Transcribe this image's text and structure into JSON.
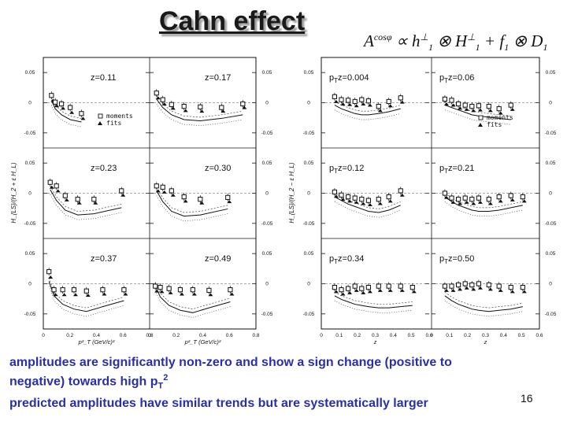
{
  "slide": {
    "title": "Cahn effect",
    "formula": {
      "lhs": "A",
      "lhs_sup": "cosφ",
      "propto": " ∝ ",
      "h": "h",
      "h_sup": "⊥",
      "h_sub": "1",
      "otimes1": " ⊗ ",
      "H": "H",
      "H_sup": "⊥",
      "H_sub": "1",
      "plus": " + ",
      "f": "f",
      "f_sub": "1",
      "otimes2": " ⊗ ",
      "D": "D",
      "D_sub": "1"
    },
    "conclusion_line1": "amplitudes are significantly non-zero and show a sign change (positive to",
    "conclusion_line2_pre": "negative) towards high p",
    "conclusion_line2_sub": "T",
    "conclusion_line2_sup": "2",
    "conclusion_line3": "predicted amplitudes have similar trends but are systematically larger",
    "page_number": "16"
  },
  "colors": {
    "conclusion_text": "#2a2fa8",
    "plot_ink": "#111111"
  },
  "chart_data": [
    {
      "type": "scatter",
      "name": "left figure: amplitude vs pT^2 in bins of z",
      "ylabel": "H_{LS}/(H_2 + ε H_L)",
      "xlabel": "p²_T (GeV/c)²",
      "xlim": [
        0,
        0.8
      ],
      "ylim": [
        -0.075,
        0.075
      ],
      "y_ticks": [
        "0.05",
        "0",
        "-0.05"
      ],
      "x_ticks": [
        "0",
        "0.2",
        "0.4",
        "0.6",
        "0.8"
      ],
      "legend": [
        "moments",
        "fits"
      ],
      "legend_placement": "first panel, bottom-right",
      "panels": [
        {
          "label": "z=0.11",
          "x": [
            0.04,
            0.07,
            0.12,
            0.19,
            0.28
          ],
          "moments": [
            0.012,
            0.001,
            -0.002,
            -0.008,
            -0.018
          ],
          "fits": [
            0.008,
            -0.001,
            -0.005,
            -0.012,
            -0.022
          ],
          "model": [
            0.004,
            -0.01,
            -0.02,
            -0.028,
            -0.032
          ]
        },
        {
          "label": "z=0.17",
          "x": [
            0.03,
            0.08,
            0.15,
            0.25,
            0.38,
            0.55,
            0.72
          ],
          "moments": [
            0.016,
            0.005,
            -0.003,
            -0.006,
            -0.007,
            -0.008,
            -0.002
          ],
          "fits": [
            0.012,
            0.002,
            -0.005,
            -0.009,
            -0.01,
            -0.01,
            -0.004
          ],
          "model": [
            0.006,
            -0.008,
            -0.02,
            -0.028,
            -0.03,
            -0.026,
            -0.02
          ]
        },
        {
          "label": "z=0.23",
          "x": [
            0.03,
            0.08,
            0.15,
            0.25,
            0.38,
            0.6
          ],
          "moments": [
            0.018,
            0.012,
            -0.004,
            -0.01,
            -0.01,
            0.004
          ],
          "fits": [
            0.014,
            0.008,
            -0.007,
            -0.012,
            -0.012,
            0.001
          ],
          "model": [
            0.006,
            -0.012,
            -0.028,
            -0.036,
            -0.034,
            -0.024
          ]
        },
        {
          "label": "z=0.30",
          "x": [
            0.03,
            0.08,
            0.15,
            0.25,
            0.38,
            0.6
          ],
          "moments": [
            0.012,
            0.01,
            0.004,
            -0.006,
            -0.01,
            -0.007
          ],
          "fits": [
            0.008,
            0.006,
            0.001,
            -0.009,
            -0.012,
            -0.01
          ],
          "model": [
            0.004,
            -0.014,
            -0.03,
            -0.038,
            -0.036,
            -0.026
          ]
        },
        {
          "label": "z=0.37",
          "x": [
            0.02,
            0.06,
            0.13,
            0.22,
            0.32,
            0.45,
            0.62
          ],
          "moments": [
            0.02,
            -0.01,
            -0.01,
            -0.01,
            -0.012,
            -0.01,
            -0.01
          ],
          "fits": [
            0.015,
            -0.014,
            -0.014,
            -0.014,
            -0.015,
            -0.013,
            -0.013
          ],
          "model": [
            0.004,
            -0.02,
            -0.034,
            -0.042,
            -0.046,
            -0.038,
            -0.028
          ]
        },
        {
          "label": "z=0.49",
          "x": [
            0.02,
            0.06,
            0.13,
            0.22,
            0.32,
            0.45,
            0.62
          ],
          "moments": [
            -0.004,
            -0.006,
            -0.008,
            -0.01,
            -0.01,
            -0.011,
            -0.01
          ],
          "fits": [
            -0.008,
            -0.009,
            -0.011,
            -0.013,
            -0.013,
            -0.014,
            -0.013
          ],
          "model": [
            -0.004,
            -0.022,
            -0.036,
            -0.044,
            -0.048,
            -0.04,
            -0.03
          ]
        }
      ]
    },
    {
      "type": "scatter",
      "name": "right figure: amplitude vs z in bins of pT^2",
      "ylabel": "H_{LS}/(H_2 − ε H_L)",
      "xlabel": "z",
      "xlim": [
        0,
        0.6
      ],
      "ylim": [
        -0.075,
        0.075
      ],
      "y_ticks": [
        "0.05",
        "0",
        "-0.05"
      ],
      "x_ticks": [
        "0",
        "0.1",
        "0.2",
        "0.3",
        "0.4",
        "0.5",
        "0.6"
      ],
      "legend": [
        "moments",
        "fits"
      ],
      "legend_placement": "top-right panel, bottom-right",
      "panels": [
        {
          "label_main": "p",
          "label_sub": "T",
          "label_rest": "z=0.004",
          "x": [
            0.06,
            0.1,
            0.14,
            0.18,
            0.22,
            0.26,
            0.32,
            0.38,
            0.45
          ],
          "moments": [
            0.01,
            0.005,
            0.004,
            0.002,
            0.005,
            0.003,
            -0.006,
            0.002,
            0.008
          ],
          "fits": [
            0.006,
            0.002,
            0.001,
            -0.001,
            0.002,
            0.0,
            -0.009,
            -0.001,
            0.005
          ],
          "model": [
            -0.004,
            -0.01,
            -0.014,
            -0.018,
            -0.02,
            -0.02,
            -0.018,
            -0.015,
            -0.01
          ]
        },
        {
          "label_main": "p",
          "label_sub": "T",
          "label_rest": "z=0.06",
          "x": [
            0.06,
            0.1,
            0.14,
            0.18,
            0.22,
            0.26,
            0.32,
            0.38,
            0.45
          ],
          "moments": [
            0.006,
            0.004,
            -0.002,
            -0.004,
            -0.006,
            -0.005,
            -0.006,
            -0.01,
            -0.004
          ],
          "fits": [
            0.002,
            0.0,
            -0.005,
            -0.007,
            -0.009,
            -0.008,
            -0.009,
            -0.013,
            -0.007
          ],
          "model": [
            -0.004,
            -0.008,
            -0.012,
            -0.016,
            -0.02,
            -0.022,
            -0.024,
            -0.026,
            -0.028
          ]
        },
        {
          "label_main": "p",
          "label_sub": "T",
          "label_rest": "z=0.12",
          "x": [
            0.06,
            0.1,
            0.14,
            0.18,
            0.22,
            0.26,
            0.32,
            0.38,
            0.45
          ],
          "moments": [
            0.002,
            -0.003,
            -0.006,
            -0.008,
            -0.01,
            -0.012,
            -0.01,
            -0.006,
            0.004
          ],
          "fits": [
            -0.001,
            -0.006,
            -0.009,
            -0.011,
            -0.013,
            -0.015,
            -0.013,
            -0.009,
            0.001
          ],
          "model": [
            -0.006,
            -0.012,
            -0.018,
            -0.022,
            -0.026,
            -0.03,
            -0.032,
            -0.028,
            -0.02
          ]
        },
        {
          "label_main": "p",
          "label_sub": "T",
          "label_rest": "z=0.21",
          "x": [
            0.06,
            0.1,
            0.14,
            0.18,
            0.22,
            0.26,
            0.32,
            0.38,
            0.45,
            0.52
          ],
          "moments": [
            0.0,
            -0.008,
            -0.01,
            -0.008,
            -0.01,
            -0.008,
            -0.01,
            -0.006,
            -0.004,
            -0.006
          ],
          "fits": [
            -0.003,
            -0.011,
            -0.013,
            -0.011,
            -0.013,
            -0.011,
            -0.013,
            -0.009,
            -0.007,
            -0.009
          ],
          "model": [
            -0.006,
            -0.014,
            -0.02,
            -0.024,
            -0.028,
            -0.03,
            -0.03,
            -0.028,
            -0.024,
            -0.02
          ]
        },
        {
          "label_main": "p",
          "label_sub": "T",
          "label_rest": "z=0.34",
          "x": [
            0.06,
            0.1,
            0.14,
            0.18,
            0.22,
            0.26,
            0.32,
            0.38,
            0.45,
            0.52
          ],
          "moments": [
            -0.006,
            -0.01,
            -0.008,
            -0.004,
            -0.008,
            -0.006,
            -0.004,
            -0.004,
            -0.004,
            -0.006
          ],
          "fits": [
            -0.009,
            -0.013,
            -0.011,
            -0.007,
            -0.011,
            -0.009,
            -0.007,
            -0.007,
            -0.007,
            -0.009
          ],
          "model": [
            -0.02,
            -0.026,
            -0.03,
            -0.034,
            -0.036,
            -0.038,
            -0.04,
            -0.04,
            -0.038,
            -0.036
          ]
        },
        {
          "label_main": "p",
          "label_sub": "T",
          "label_rest": "z=0.50",
          "x": [
            0.06,
            0.1,
            0.14,
            0.18,
            0.22,
            0.26,
            0.32,
            0.38,
            0.45,
            0.52
          ],
          "moments": [
            -0.004,
            -0.004,
            -0.002,
            0.0,
            -0.002,
            0.0,
            -0.002,
            -0.004,
            -0.006,
            -0.006
          ],
          "fits": [
            -0.007,
            -0.007,
            -0.005,
            -0.003,
            -0.005,
            -0.003,
            -0.005,
            -0.007,
            -0.009,
            -0.009
          ],
          "model": [
            -0.02,
            -0.028,
            -0.034,
            -0.038,
            -0.042,
            -0.044,
            -0.046,
            -0.044,
            -0.042,
            -0.038
          ]
        }
      ]
    }
  ]
}
